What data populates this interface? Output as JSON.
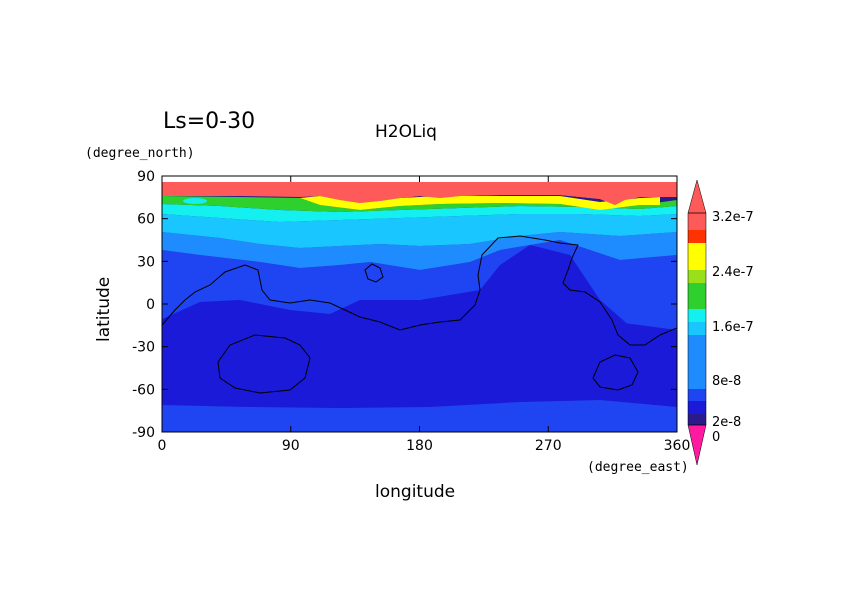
{
  "chart_data": {
    "type": "heatmap",
    "title": "H2OLiq",
    "subtitle": "Ls=0-30",
    "xlabel": "longitude",
    "ylabel": "latitude",
    "x_unit": "(degree_east)",
    "y_unit": "(degree_north)",
    "xlim": [
      0,
      360
    ],
    "ylim": [
      -90,
      90
    ],
    "x_ticks": [
      "0",
      "90",
      "180",
      "270",
      "360"
    ],
    "y_ticks": [
      "90",
      "60",
      "30",
      "0",
      "-30",
      "-60",
      "-90"
    ],
    "x_tick_values": [
      0,
      90,
      180,
      270,
      360
    ],
    "y_tick_values": [
      90,
      60,
      30,
      0,
      -30,
      -60,
      -90
    ],
    "grid": false,
    "colorbar": {
      "position": "right",
      "labels": [
        "3.2e-7",
        "2.4e-7",
        "1.6e-7",
        "8e-8",
        "2e-8",
        "0"
      ],
      "label_values": [
        3.2e-07,
        2.4e-07,
        1.6e-07,
        8e-08,
        2e-08,
        0
      ],
      "levels": [
        0,
        2e-08,
        4e-08,
        8e-08,
        1.2e-07,
        1.6e-07,
        2e-07,
        2.4e-07,
        2.8e-07,
        3.2e-07
      ],
      "colors": [
        "#2a1a8c",
        "#1a1ad8",
        "#1f44f2",
        "#1e8cff",
        "#19c6ff",
        "#14f0f0",
        "#2ed02e",
        "#99e01a",
        "#ffff00",
        "#ff8c00",
        "#ff3300"
      ],
      "under_color": "#ff1aa0",
      "over_color": "#ff5a5a",
      "triangle_top_color": "#ff5a5a",
      "triangle_bottom_color": "#ff1aa0"
    },
    "bands": [
      {
        "level": "over",
        "lat_min": 75,
        "lat_max": 84,
        "color": "#ff5a5a"
      },
      {
        "level": "2.4e-7",
        "lat_min": 70,
        "lat_max": 75,
        "color": "#ffff00"
      },
      {
        "level": "1.6e-7",
        "lat_min": 65,
        "lat_max": 72,
        "color": "#2ed02e"
      },
      {
        "level": "1.2e-7",
        "lat_min": 55,
        "lat_max": 65,
        "color": "#14f0f0"
      },
      {
        "level": "8e-8",
        "lat_min": 35,
        "lat_max": 55,
        "color": "#1e8cff"
      },
      {
        "level": "4e-8",
        "lat_min": -10,
        "lat_max": 35,
        "color": "#1f44f2"
      },
      {
        "level": "2e-8",
        "lat_min": -73,
        "lat_max": -10,
        "color": "#1a1ad8"
      },
      {
        "level": "0",
        "lat_min": -90,
        "lat_max": -73,
        "color": "#2a1a8c"
      }
    ],
    "overlay": "topography contour (black lines)"
  }
}
